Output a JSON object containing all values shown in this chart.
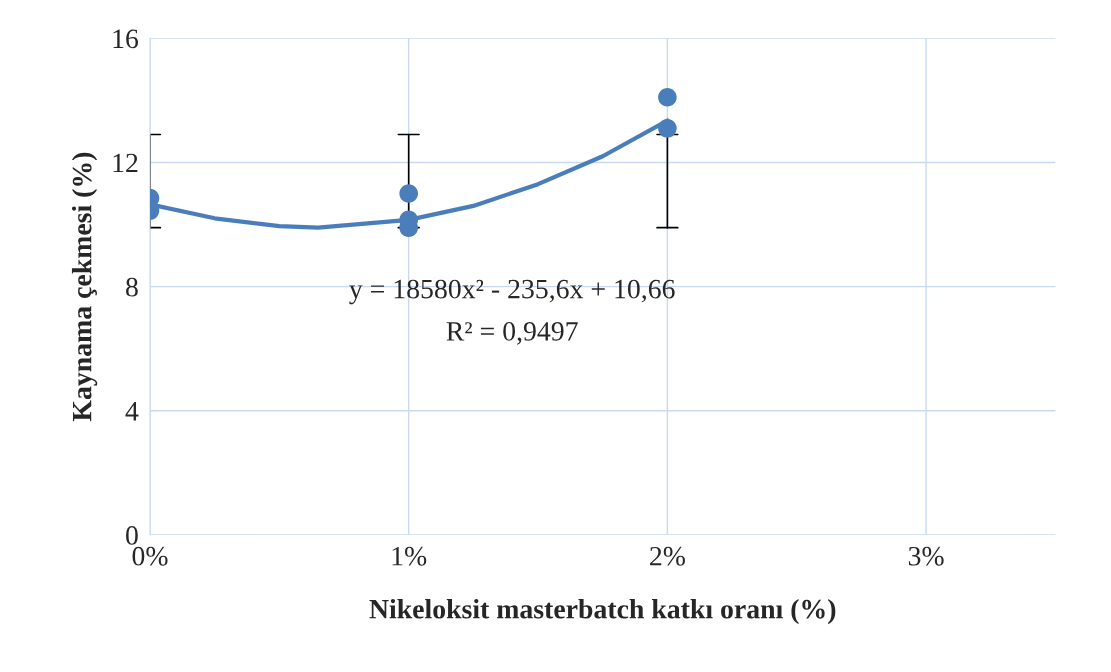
{
  "chart_data": {
    "type": "scatter",
    "xlabel": "Nikeloksit masterbatch katkı oranı (%)",
    "ylabel": "Kaynama çekmesi (%)",
    "xlim": [
      0,
      0.035
    ],
    "xticks": [
      {
        "value": 0,
        "label": "0%"
      },
      {
        "value": 0.01,
        "label": "1%"
      },
      {
        "value": 0.02,
        "label": "2%"
      },
      {
        "value": 0.03,
        "label": "3%"
      }
    ],
    "ylim": [
      0,
      16
    ],
    "yticks": [
      0,
      4,
      8,
      12,
      16
    ],
    "grid": true,
    "marker": "circle",
    "series": [
      {
        "type": "line",
        "color": "#4a7ebb",
        "marker": "none",
        "x": [
          0,
          0.0025,
          0.005,
          0.0065,
          0.01,
          0.0125,
          0.015,
          0.0175,
          0.02
        ],
        "values": [
          10.65,
          10.2,
          9.95,
          9.9,
          10.15,
          10.6,
          11.3,
          12.2,
          13.35
        ]
      },
      {
        "color": "#4a7ebb",
        "x": [
          0,
          0,
          0.01,
          0.01,
          0.01,
          0.02,
          0.02
        ],
        "values": [
          10.85,
          10.45,
          11.0,
          10.15,
          9.9,
          14.1,
          13.1
        ],
        "errors": [
          null,
          [
            9.9,
            12.9
          ],
          null,
          null,
          [
            9.9,
            12.9
          ],
          [
            9.9,
            12.9
          ],
          null
        ]
      }
    ],
    "annotations": [
      "y = 18580x² - 235,6x + 10,66",
      "R² = 0,9497"
    ]
  }
}
